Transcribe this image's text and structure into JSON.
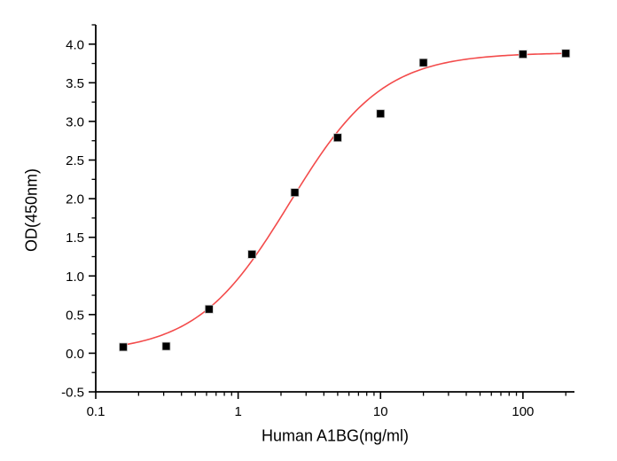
{
  "figure": {
    "background": "#ffffff",
    "axis_color": "#000000",
    "text_color": "#000000"
  },
  "chart_data": {
    "type": "scatter",
    "title": "",
    "xlabel": "Human A1BG(ng/ml)",
    "ylabel": "OD(450nm)",
    "x_scale": "log",
    "xlim": [
      0.1,
      230
    ],
    "ylim": [
      -0.5,
      4.25
    ],
    "grid": false,
    "legend": "none",
    "x_major_ticks": [
      {
        "value": 0.1,
        "label": "0.1"
      },
      {
        "value": 1,
        "label": "1"
      },
      {
        "value": 10,
        "label": "10"
      },
      {
        "value": 100,
        "label": "100"
      }
    ],
    "x_minor_tick_multiples": [
      2,
      3,
      4,
      5,
      6,
      7,
      8,
      9
    ],
    "y_major_ticks": [
      {
        "value": -0.5,
        "label": "-0.5"
      },
      {
        "value": 0.0,
        "label": "0.0"
      },
      {
        "value": 0.5,
        "label": "0.5"
      },
      {
        "value": 1.0,
        "label": "1.0"
      },
      {
        "value": 1.5,
        "label": "1.5"
      },
      {
        "value": 2.0,
        "label": "2.0"
      },
      {
        "value": 2.5,
        "label": "2.5"
      },
      {
        "value": 3.0,
        "label": "3.0"
      },
      {
        "value": 3.5,
        "label": "3.5"
      },
      {
        "value": 4.0,
        "label": "4.0"
      }
    ],
    "y_minor_ticks": [
      -0.25,
      0.25,
      0.75,
      1.25,
      1.75,
      2.25,
      2.75,
      3.25,
      3.75,
      4.25
    ],
    "series": [
      {
        "name": "standard-data-points",
        "type": "scatter",
        "marker": "filled-square",
        "marker_size": 9,
        "color": "#000000",
        "x": [
          0.156,
          0.3125,
          0.625,
          1.25,
          2.5,
          5,
          10,
          20,
          100,
          200
        ],
        "y": [
          0.08,
          0.09,
          0.57,
          1.28,
          2.08,
          2.79,
          3.1,
          3.76,
          3.87,
          3.88
        ]
      },
      {
        "name": "4pl-fit-curve",
        "type": "line",
        "color": "#f34b4b",
        "line_width": 1.6,
        "fit": {
          "model": "4PL",
          "bottom": 0.0,
          "top": 3.89,
          "ec50": 2.3,
          "hill": 1.33
        },
        "x_range": [
          0.156,
          200
        ]
      }
    ]
  }
}
